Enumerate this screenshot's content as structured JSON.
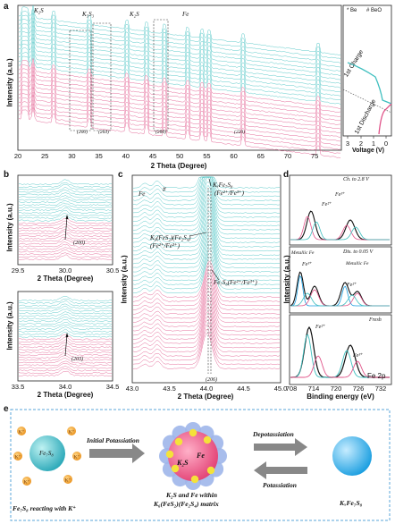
{
  "panels": {
    "a": {
      "label": "a",
      "ylabel": "Intensity (a.u.)",
      "xlabel": "2 Theta (Degree)",
      "xticks": [
        "20",
        "25",
        "30",
        "35",
        "40",
        "45",
        "50",
        "55",
        "60",
        "65",
        "70",
        "75"
      ],
      "peak_labels": [
        "K₂S",
        "K₅S₃",
        "K₂S",
        "Fe"
      ],
      "hkl_labels": [
        "(200)",
        "(203)",
        "(206)",
        "(220)"
      ],
      "legend": [
        "* Be",
        "# BeO"
      ],
      "side_labels": [
        "1st Charge",
        "1st Discharge"
      ],
      "side_xlabel": "Voltage (V)",
      "side_xticks": [
        "3",
        "2",
        "1",
        "0"
      ]
    },
    "b": {
      "label": "b",
      "ylabel": "Intensity (a.u.)",
      "xlabel": "2 Theta (Degree)",
      "top_xticks": [
        "29.5",
        "30.0",
        "30.5"
      ],
      "top_hkl": "(200)",
      "bottom_xticks": [
        "33.5",
        "34.0",
        "34.5"
      ],
      "bottom_hkl": "(203)"
    },
    "c": {
      "label": "c",
      "ylabel": "Intensity (a.u.)",
      "xlabel": "2 Theta (Degree)",
      "xticks": [
        "43.0",
        "43.5",
        "44.0",
        "44.5",
        "45.0"
      ],
      "annotations": [
        "Fe",
        "#",
        "KₓFe₇S₈",
        "(Fe²⁺/Fe³⁺)",
        "K₆(FeS₂)(Fe₂S₄)",
        "(Fe²⁺/Fe³⁺)",
        "Fe₇S₈(Fe²⁺/Fe³⁺)"
      ],
      "hkl": "(206)"
    },
    "d": {
      "label": "d",
      "ylabel": "Intensity (a.u.)",
      "xlabel": "Binding energy (eV)",
      "xticks": [
        "708",
        "714",
        "720",
        "726",
        "732"
      ],
      "top_title": "Ch. to 2.8 V",
      "mid_title": "Dis. to 0.05 V",
      "bottom_title": "Fresh",
      "fe3": "Fe³⁺",
      "fe2": "Fe²⁺",
      "metallic": "Metallic Fe",
      "corner": "Fe 2p"
    },
    "e": {
      "label": "e",
      "left_text": "Fe₇S₈",
      "left_caption": "Fe₇S₈ reacting with K⁺",
      "kplus": "K⁺",
      "arrow1": "Initial Potassiation",
      "mid_k2s": "K₂S",
      "mid_fe": "Fe",
      "mid_caption1": "K₂S and Fe within",
      "mid_caption2": "K₆(FeS₂)(Fe₂S₄) matrix",
      "arrow2": "Depotassiation",
      "arrow3": "Potassiation",
      "right_caption": "KₓFe₇S₈"
    }
  },
  "colors": {
    "cyan": "#3fbfbf",
    "pink": "#e0558a",
    "orange": "#f3a52a",
    "box": "#5aa6d8"
  }
}
